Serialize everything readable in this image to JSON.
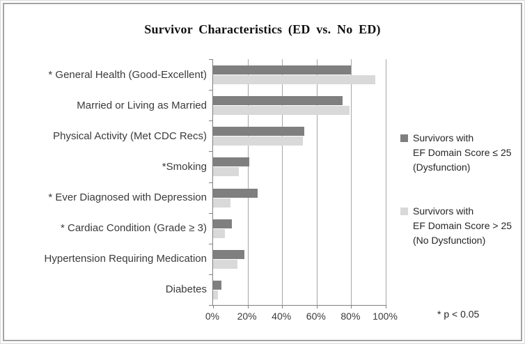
{
  "title": "Survivor Characteristics (ED vs. No ED)",
  "footnote": "* p < 0.05",
  "colors": {
    "dysfunction_bar": "#7f7f7f",
    "no_dysfunction_bar": "#d9d9d9",
    "gridline": "#a6a6a6",
    "axis": "#808080",
    "frame_border": "#a3a3a3",
    "text": "#262626"
  },
  "legend": [
    {
      "swatch_color": "#7f7f7f",
      "lines": [
        "Survivors with",
        "EF Domain Score ≤ 25",
        "(Dysfunction)"
      ]
    },
    {
      "swatch_color": "#d9d9d9",
      "lines": [
        "Survivors with",
        "EF Domain Score > 25",
        "(No Dysfunction)"
      ]
    }
  ],
  "chart_data": {
    "type": "bar",
    "orientation": "horizontal",
    "title": "Survivor Characteristics (ED vs. No ED)",
    "categories": [
      "* General Health (Good-Excellent)",
      "Married or Living as Married",
      "Physical Activity (Met CDC Recs)",
      "*Smoking",
      "* Ever Diagnosed with Depression",
      "* Cardiac Condition (Grade ≥ 3)",
      "Hypertension Requiring Medication",
      "Diabetes"
    ],
    "series": [
      {
        "name": "Survivors with EF Domain Score ≤ 25 (Dysfunction)",
        "color": "#7f7f7f",
        "values": [
          80,
          75,
          53,
          21,
          26,
          11,
          18,
          5
        ]
      },
      {
        "name": "Survivors with EF Domain Score > 25 (No Dysfunction)",
        "color": "#d9d9d9",
        "values": [
          94,
          79,
          52,
          15,
          10,
          7,
          14,
          3
        ]
      }
    ],
    "xlim": [
      0,
      100
    ],
    "x_ticks": [
      "0%",
      "20%",
      "40%",
      "60%",
      "80%",
      "100%"
    ],
    "x_tick_values": [
      0,
      20,
      40,
      60,
      80,
      100
    ],
    "gridlines": true,
    "legend_position": "right",
    "footnote": "* p < 0.05"
  }
}
